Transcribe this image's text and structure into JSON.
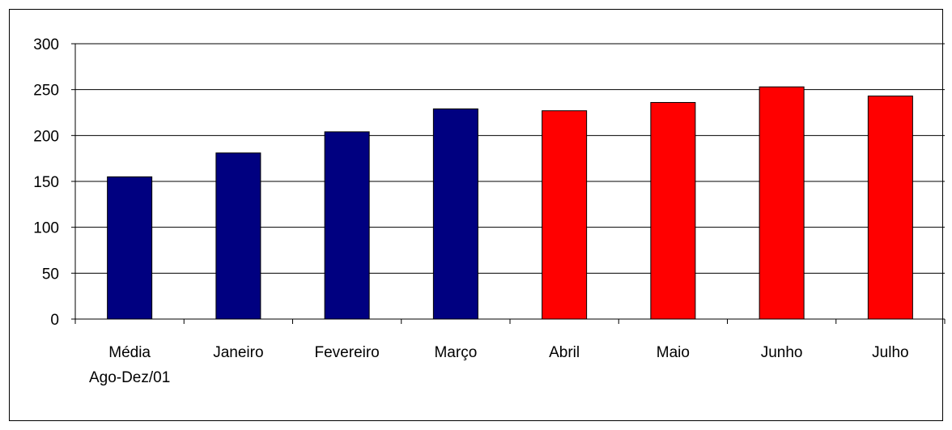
{
  "chart_data": {
    "type": "bar",
    "categories": [
      [
        "Média",
        "Ago-Dez/01"
      ],
      [
        "Janeiro"
      ],
      [
        "Fevereiro"
      ],
      [
        "Março"
      ],
      [
        "Abril"
      ],
      [
        "Maio"
      ],
      [
        "Junho"
      ],
      [
        "Julho"
      ]
    ],
    "values": [
      155,
      181,
      204,
      229,
      227,
      236,
      253,
      243
    ],
    "bar_colors": [
      "#000080",
      "#000080",
      "#000080",
      "#000080",
      "#ff0000",
      "#ff0000",
      "#ff0000",
      "#ff0000"
    ],
    "yticks": [
      0,
      50,
      100,
      150,
      200,
      250,
      300
    ],
    "ylim": [
      0,
      300
    ],
    "grid": true,
    "title": "",
    "xlabel": "",
    "ylabel": ""
  }
}
